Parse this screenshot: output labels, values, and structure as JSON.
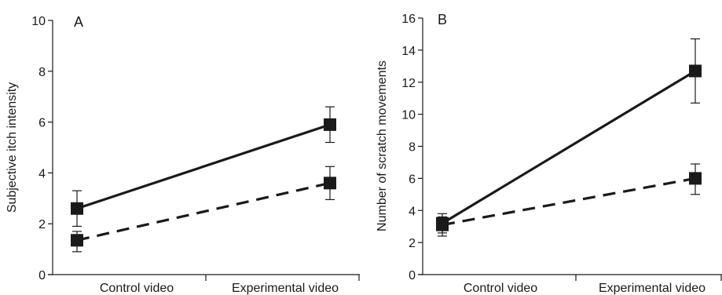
{
  "chart_data": [
    {
      "type": "line",
      "panel_label": "A",
      "ylabel": "Subjective itch intensity",
      "categories": [
        "Control video",
        "Experimental video"
      ],
      "ylim": [
        0,
        10
      ],
      "yticks": [
        0,
        2,
        4,
        6,
        8,
        10
      ],
      "grid": false,
      "series": [
        {
          "style": "solid",
          "values": [
            2.6,
            5.9
          ],
          "err_low": [
            1.9,
            5.2
          ],
          "err_high": [
            3.3,
            6.6
          ],
          "color": "#1a1a1a"
        },
        {
          "style": "dashed",
          "values": [
            1.35,
            3.6
          ],
          "err_low": [
            0.9,
            2.95
          ],
          "err_high": [
            1.7,
            4.25
          ],
          "color": "#1a1a1a"
        }
      ]
    },
    {
      "type": "line",
      "panel_label": "B",
      "ylabel": "Number of scratch movements",
      "categories": [
        "Control video",
        "Experimental video"
      ],
      "ylim": [
        0,
        16
      ],
      "yticks": [
        0,
        2,
        4,
        6,
        8,
        10,
        12,
        14,
        16
      ],
      "grid": false,
      "series": [
        {
          "style": "solid",
          "values": [
            3.2,
            12.7
          ],
          "err_low": [
            2.6,
            10.7
          ],
          "err_high": [
            3.8,
            14.7
          ],
          "color": "#1a1a1a"
        },
        {
          "style": "dashed",
          "values": [
            3.1,
            6.0
          ],
          "err_low": [
            2.4,
            5.0
          ],
          "err_high": [
            3.6,
            6.9
          ],
          "color": "#1a1a1a"
        }
      ]
    }
  ]
}
